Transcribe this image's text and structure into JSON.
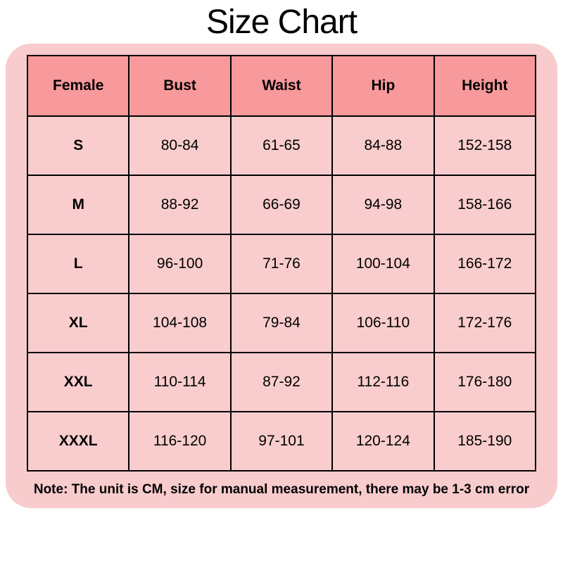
{
  "title": "Size Chart",
  "colors": {
    "page_bg": "#ffffff",
    "container_bg": "#f8cbcd",
    "header_bg": "#f8999c",
    "cell_bg": "#f9cdce",
    "border": "#000000",
    "text": "#000000"
  },
  "chart_data": {
    "type": "table",
    "title": "Size Chart",
    "columns": [
      "Female",
      "Bust",
      "Waist",
      "Hip",
      "Height"
    ],
    "rows": [
      {
        "size": "S",
        "values": [
          "80-84",
          "61-65",
          "84-88",
          "152-158"
        ]
      },
      {
        "size": "M",
        "values": [
          "88-92",
          "66-69",
          "94-98",
          "158-166"
        ]
      },
      {
        "size": "L",
        "values": [
          "96-100",
          "71-76",
          "100-104",
          "166-172"
        ]
      },
      {
        "size": "XL",
        "values": [
          "104-108",
          "79-84",
          "106-110",
          "172-176"
        ]
      },
      {
        "size": "XXL",
        "values": [
          "110-114",
          "87-92",
          "112-116",
          "176-180"
        ]
      },
      {
        "size": "XXXL",
        "values": [
          "116-120",
          "97-101",
          "120-124",
          "185-190"
        ]
      }
    ]
  },
  "note": "Note: The unit is CM, size for manual measurement, there may be 1-3 cm error"
}
